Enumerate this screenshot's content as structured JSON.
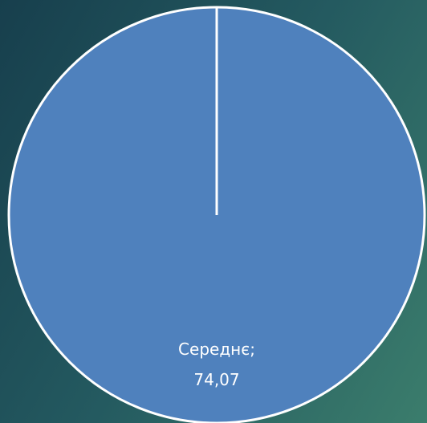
{
  "chart_data": {
    "type": "pie",
    "categories": [
      "Середнє;"
    ],
    "values": [
      74.07
    ],
    "value_labels": [
      "74,07"
    ],
    "colors": [
      "#4f81bd"
    ]
  }
}
